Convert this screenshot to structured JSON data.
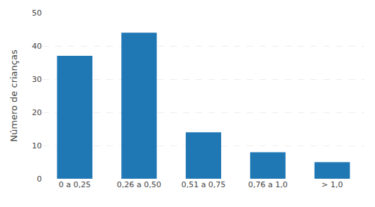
{
  "chart_data": {
    "type": "bar",
    "categories": [
      "0 a 0,25",
      "0,26 a 0,50",
      "0,51 a 0,75",
      "0,76 a 1,0",
      "> 1,0"
    ],
    "values": [
      37,
      44,
      14,
      8,
      5
    ],
    "ylabel": "Número de crianças",
    "ylim": [
      0,
      50
    ],
    "yticks": [
      0,
      10,
      20,
      30,
      40,
      50
    ],
    "grid": true
  }
}
